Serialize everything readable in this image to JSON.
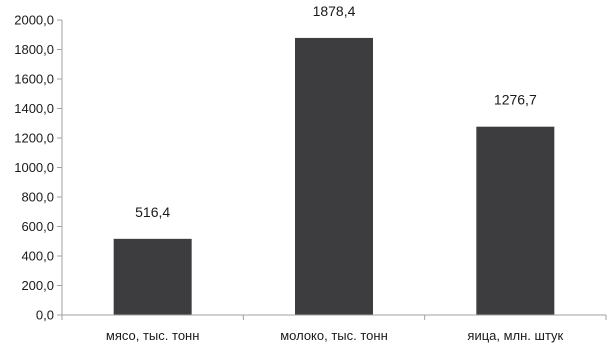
{
  "chart_data": {
    "type": "bar",
    "categories": [
      "мясо, тыс. тонн",
      "молоко, тыс. тонн",
      "яица, млн. штук"
    ],
    "values": [
      516.4,
      1878.4,
      1276.7
    ],
    "value_labels": [
      "516,4",
      "1878,4",
      "1276,7"
    ],
    "y_ticks": [
      "0,0",
      "200,0",
      "400,0",
      "600,0",
      "800,0",
      "1000,0",
      "1200,0",
      "1400,0",
      "1600,0",
      "1800,0",
      "2000,0"
    ],
    "ylim": [
      0,
      2000
    ],
    "grid": false,
    "legend": "none",
    "bar_color": "#3d3d3f",
    "title": "",
    "xlabel": "",
    "ylabel": ""
  }
}
